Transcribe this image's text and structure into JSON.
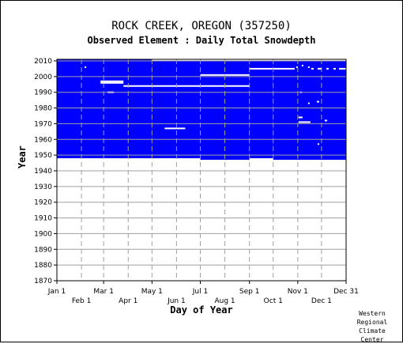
{
  "chart_data": {
    "type": "heatmap",
    "title": "ROCK CREEK, OREGON   (357250)",
    "subtitle": "Observed Element : Daily Total Snowdepth",
    "xlabel": "Day of Year",
    "ylabel": "Year",
    "ylim": [
      1870,
      2011
    ],
    "xlim": [
      1,
      365
    ],
    "y_ticks": [
      1870,
      1880,
      1890,
      1900,
      1910,
      1920,
      1930,
      1940,
      1950,
      1960,
      1970,
      1980,
      1990,
      2000,
      2010
    ],
    "x_ticks_upper": [
      {
        "label": "Jan 1",
        "day": 1
      },
      {
        "label": "Mar 1",
        "day": 60
      },
      {
        "label": "May 1",
        "day": 121
      },
      {
        "label": "Jul 1",
        "day": 182
      },
      {
        "label": "Sep 1",
        "day": 244
      },
      {
        "label": "Nov 1",
        "day": 305
      },
      {
        "label": "Dec 31",
        "day": 365
      }
    ],
    "x_ticks_lower": [
      {
        "label": "Feb 1",
        "day": 32
      },
      {
        "label": "Apr 1",
        "day": 91
      },
      {
        "label": "Jun 1",
        "day": 152
      },
      {
        "label": "Aug 1",
        "day": 213
      },
      {
        "label": "Oct 1",
        "day": 274
      },
      {
        "label": "Dec 1",
        "day": 335
      }
    ],
    "grid": true,
    "data_color": "#0000ff",
    "coverage": [
      {
        "start_day": 1,
        "end_day": 120,
        "first_year": 1948,
        "last_year": 2010
      },
      {
        "start_day": 121,
        "end_day": 181,
        "first_year": 1948,
        "last_year": 2009
      },
      {
        "start_day": 182,
        "end_day": 243,
        "first_year": 1947,
        "last_year": 2009
      },
      {
        "start_day": 244,
        "end_day": 273,
        "first_year": 1948,
        "last_year": 2009
      },
      {
        "start_day": 274,
        "end_day": 365,
        "first_year": 1947,
        "last_year": 2009
      }
    ],
    "missing_segments": [
      {
        "year": 2006,
        "start_day": 36,
        "end_day": 37
      },
      {
        "year": 1997,
        "start_day": 56,
        "end_day": 84
      },
      {
        "year": 1996,
        "start_day": 56,
        "end_day": 84
      },
      {
        "year": 1990,
        "start_day": 65,
        "end_day": 72
      },
      {
        "year": 1994,
        "start_day": 85,
        "end_day": 243
      },
      {
        "year": 2001,
        "start_day": 182,
        "end_day": 243
      },
      {
        "year": 1967,
        "start_day": 137,
        "end_day": 162
      },
      {
        "year": 2005,
        "start_day": 244,
        "end_day": 300
      },
      {
        "year": 2006,
        "start_day": 303,
        "end_day": 304
      },
      {
        "year": 2007,
        "start_day": 310,
        "end_day": 311
      },
      {
        "year": 2006,
        "start_day": 318,
        "end_day": 319
      },
      {
        "year": 2005,
        "start_day": 322,
        "end_day": 324
      },
      {
        "year": 2005,
        "start_day": 330,
        "end_day": 334
      },
      {
        "year": 2005,
        "start_day": 341,
        "end_day": 343
      },
      {
        "year": 2005,
        "start_day": 350,
        "end_day": 352
      },
      {
        "year": 2005,
        "start_day": 357,
        "end_day": 365
      },
      {
        "year": 1990,
        "start_day": 308,
        "end_day": 309
      },
      {
        "year": 1983,
        "start_day": 318,
        "end_day": 319
      },
      {
        "year": 1984,
        "start_day": 329,
        "end_day": 331
      },
      {
        "year": 1974,
        "start_day": 306,
        "end_day": 310
      },
      {
        "year": 1971,
        "start_day": 306,
        "end_day": 320
      },
      {
        "year": 1972,
        "start_day": 339,
        "end_day": 341
      },
      {
        "year": 1957,
        "start_day": 330,
        "end_day": 331
      }
    ]
  },
  "credit": [
    "Western",
    "Regional",
    "Climate",
    "Center"
  ]
}
